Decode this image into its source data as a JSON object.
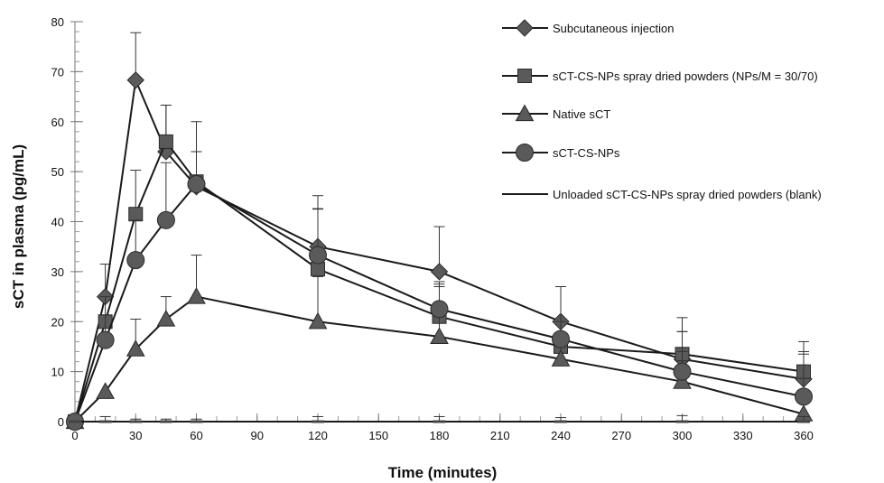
{
  "chart_data": {
    "type": "line",
    "xlabel": "Time (minutes)",
    "ylabel": "sCT in plasma (pg/mL)",
    "xlim": [
      0,
      360
    ],
    "ylim": [
      0,
      80
    ],
    "x_ticks": [
      0,
      30,
      60,
      90,
      120,
      150,
      180,
      210,
      240,
      270,
      300,
      330,
      360
    ],
    "y_ticks": [
      0,
      10,
      20,
      30,
      40,
      50,
      60,
      70,
      80
    ],
    "x_tick_labels": [
      "0",
      "30",
      "60",
      "90",
      "120",
      "150",
      "180",
      "210",
      "240",
      "270",
      "300",
      "330",
      "360"
    ],
    "y_tick_labels": [
      "0",
      "10",
      "20",
      "30",
      "40",
      "50",
      "60",
      "70",
      "80"
    ],
    "grid": false,
    "legend_position": "top-right",
    "marker_color": "#5a5a5a",
    "line_color": "#1a1a1a",
    "series": [
      {
        "name": "Subcutaneous injection",
        "marker": "diamond",
        "points": [
          {
            "x": 0,
            "y": 0,
            "err": 0
          },
          {
            "x": 15,
            "y": 25,
            "err": 6.5
          },
          {
            "x": 30,
            "y": 68.3,
            "err": 9.5
          },
          {
            "x": 45,
            "y": 54,
            "err": 9.3
          },
          {
            "x": 60,
            "y": 47,
            "err": 7
          },
          {
            "x": 120,
            "y": 35,
            "err": 10.2
          },
          {
            "x": 180,
            "y": 30,
            "err": 9
          },
          {
            "x": 240,
            "y": 20,
            "err": 7
          },
          {
            "x": 300,
            "y": 12.5,
            "err": 8.3
          },
          {
            "x": 360,
            "y": 8.5,
            "err": 5
          }
        ]
      },
      {
        "name": "sCT-CS-NPs spray dried powders (NPs/M = 30/70)",
        "marker": "square",
        "points": [
          {
            "x": 0,
            "y": 0,
            "err": 0
          },
          {
            "x": 15,
            "y": 20,
            "err": 5
          },
          {
            "x": 30,
            "y": 41.5,
            "err": 8.8
          },
          {
            "x": 45,
            "y": 56,
            "err": 7.3
          },
          {
            "x": 60,
            "y": 48,
            "err": 6
          },
          {
            "x": 120,
            "y": 30.5,
            "err": 12
          },
          {
            "x": 180,
            "y": 21,
            "err": 6.5
          },
          {
            "x": 240,
            "y": 15,
            "err": 5
          },
          {
            "x": 300,
            "y": 13.5,
            "err": 4.5
          },
          {
            "x": 360,
            "y": 10,
            "err": 6
          }
        ]
      },
      {
        "name": "Native sCT",
        "marker": "triangle",
        "points": [
          {
            "x": 0,
            "y": 0,
            "err": 0
          },
          {
            "x": 15,
            "y": 6,
            "err": 0
          },
          {
            "x": 30,
            "y": 14.5,
            "err": 6
          },
          {
            "x": 45,
            "y": 20.5,
            "err": 4.5
          },
          {
            "x": 60,
            "y": 25,
            "err": 8.3
          },
          {
            "x": 120,
            "y": 20,
            "err": 9
          },
          {
            "x": 180,
            "y": 17,
            "err": 10
          },
          {
            "x": 240,
            "y": 12.5,
            "err": 4.5
          },
          {
            "x": 300,
            "y": 8,
            "err": 6
          },
          {
            "x": 360,
            "y": 1.5,
            "err": 0
          }
        ]
      },
      {
        "name": "sCT-CS-NPs",
        "marker": "circle",
        "points": [
          {
            "x": 0,
            "y": 0,
            "err": 0
          },
          {
            "x": 15,
            "y": 16.3,
            "err": 5
          },
          {
            "x": 30,
            "y": 32.3,
            "err": 8
          },
          {
            "x": 45,
            "y": 40.3,
            "err": 11.5
          },
          {
            "x": 60,
            "y": 47.5,
            "err": 12.5
          },
          {
            "x": 120,
            "y": 33.3,
            "err": 9.3
          },
          {
            "x": 180,
            "y": 22.5,
            "err": 5.5
          },
          {
            "x": 240,
            "y": 16.5,
            "err": 10.5
          },
          {
            "x": 300,
            "y": 10,
            "err": 8
          },
          {
            "x": 360,
            "y": 5,
            "err": 9
          }
        ]
      },
      {
        "name": "Unloaded sCT-CS-NPs spray dried powders (blank)",
        "marker": "none",
        "points": [
          {
            "x": 0,
            "y": 0,
            "err": 0
          },
          {
            "x": 15,
            "y": 0,
            "err": 1
          },
          {
            "x": 30,
            "y": 0,
            "err": 0.5
          },
          {
            "x": 45,
            "y": 0,
            "err": 0.5
          },
          {
            "x": 60,
            "y": 0,
            "err": 0.5
          },
          {
            "x": 120,
            "y": 0,
            "err": 1
          },
          {
            "x": 180,
            "y": 0,
            "err": 1
          },
          {
            "x": 240,
            "y": 0,
            "err": 0.8
          },
          {
            "x": 300,
            "y": 0,
            "err": 1.2
          },
          {
            "x": 360,
            "y": 0,
            "err": 1
          }
        ]
      }
    ]
  }
}
